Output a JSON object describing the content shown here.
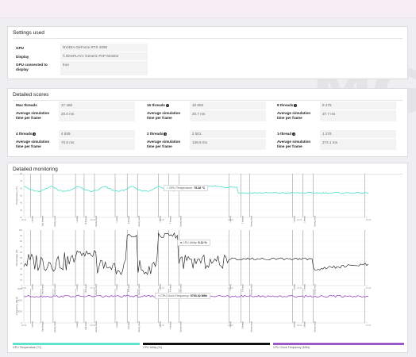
{
  "settings": {
    "title": "Settings used",
    "rows": [
      {
        "label": "GPU",
        "value": "NVIDIA GeForce RTX 4090"
      },
      {
        "label": "Display",
        "value": "\\\\.\\DISPLAY1 Generic PnP Monitor"
      },
      {
        "label": "GPU connected to display",
        "value": "true"
      }
    ]
  },
  "scores": {
    "title": "Detailed scores",
    "time_label": "Average simulation time per frame",
    "cells": [
      {
        "label": "Max threads",
        "score": "17 486",
        "time": "20.0 ms",
        "info": false
      },
      {
        "label": "16 threads",
        "score": "16 893",
        "time": "20.7 ms",
        "info": true
      },
      {
        "label": "8 threads",
        "score": "9 275",
        "time": "37.7 ms",
        "info": true
      },
      {
        "label": "4 threads",
        "score": "4 939",
        "time": "70.8 ms",
        "info": true
      },
      {
        "label": "2 threads",
        "score": "2 501",
        "time": "139.9 ms",
        "info": true
      },
      {
        "label": "1-thread",
        "score": "1 276",
        "time": "274.1 ms",
        "info": true
      }
    ]
  },
  "monitoring": {
    "title": "Detailed monitoring",
    "phase_labels": [
      "Loading",
      "Max threads",
      "Saving result",
      "Loading",
      "16 threads",
      "Saving result",
      "Loading",
      "8 threads",
      "Saving result",
      "Loading",
      "4 threads",
      "Saving result",
      "Loading",
      "2 threads",
      "Saving result",
      "Loading",
      "1 thread",
      "Saving result"
    ],
    "time_ticks": [
      "00:00",
      "00:40",
      "01:20",
      "02:00",
      "02:40",
      "03:20"
    ],
    "charts": [
      {
        "ylabel": "Temperature (°C)",
        "yticks": [
          "80",
          "70",
          "60",
          "50",
          "40",
          "30",
          "20"
        ],
        "tooltip_label": "GPU Temperature:",
        "tooltip_value": "75.28 °C",
        "color": "#5fe3cf"
      },
      {
        "ylabel": "Percentage (%)",
        "yticks": [
          "100",
          "90",
          "80",
          "70",
          "60",
          "50",
          "40",
          "30",
          "20",
          "10",
          "0"
        ],
        "tooltip_label": "CPU Utility:",
        "tooltip_value": "5.12 %",
        "color": "#111111"
      },
      {
        "ylabel": "Frequency (MHz)",
        "yticks": [
          "6000",
          "4000",
          "2000",
          "0"
        ],
        "tooltip_label": "CPU Clock Frequency:",
        "tooltip_value": "5793.02 MHz",
        "color": "#a061c8"
      }
    ],
    "legend": [
      {
        "label": "GPU Temperature (°C)",
        "color": "#5fe3cf"
      },
      {
        "label": "CPU Utility (%)",
        "color": "#111111"
      },
      {
        "label": "CPU Clock Frequency (MHz)",
        "color": "#9b59c6"
      }
    ]
  }
}
